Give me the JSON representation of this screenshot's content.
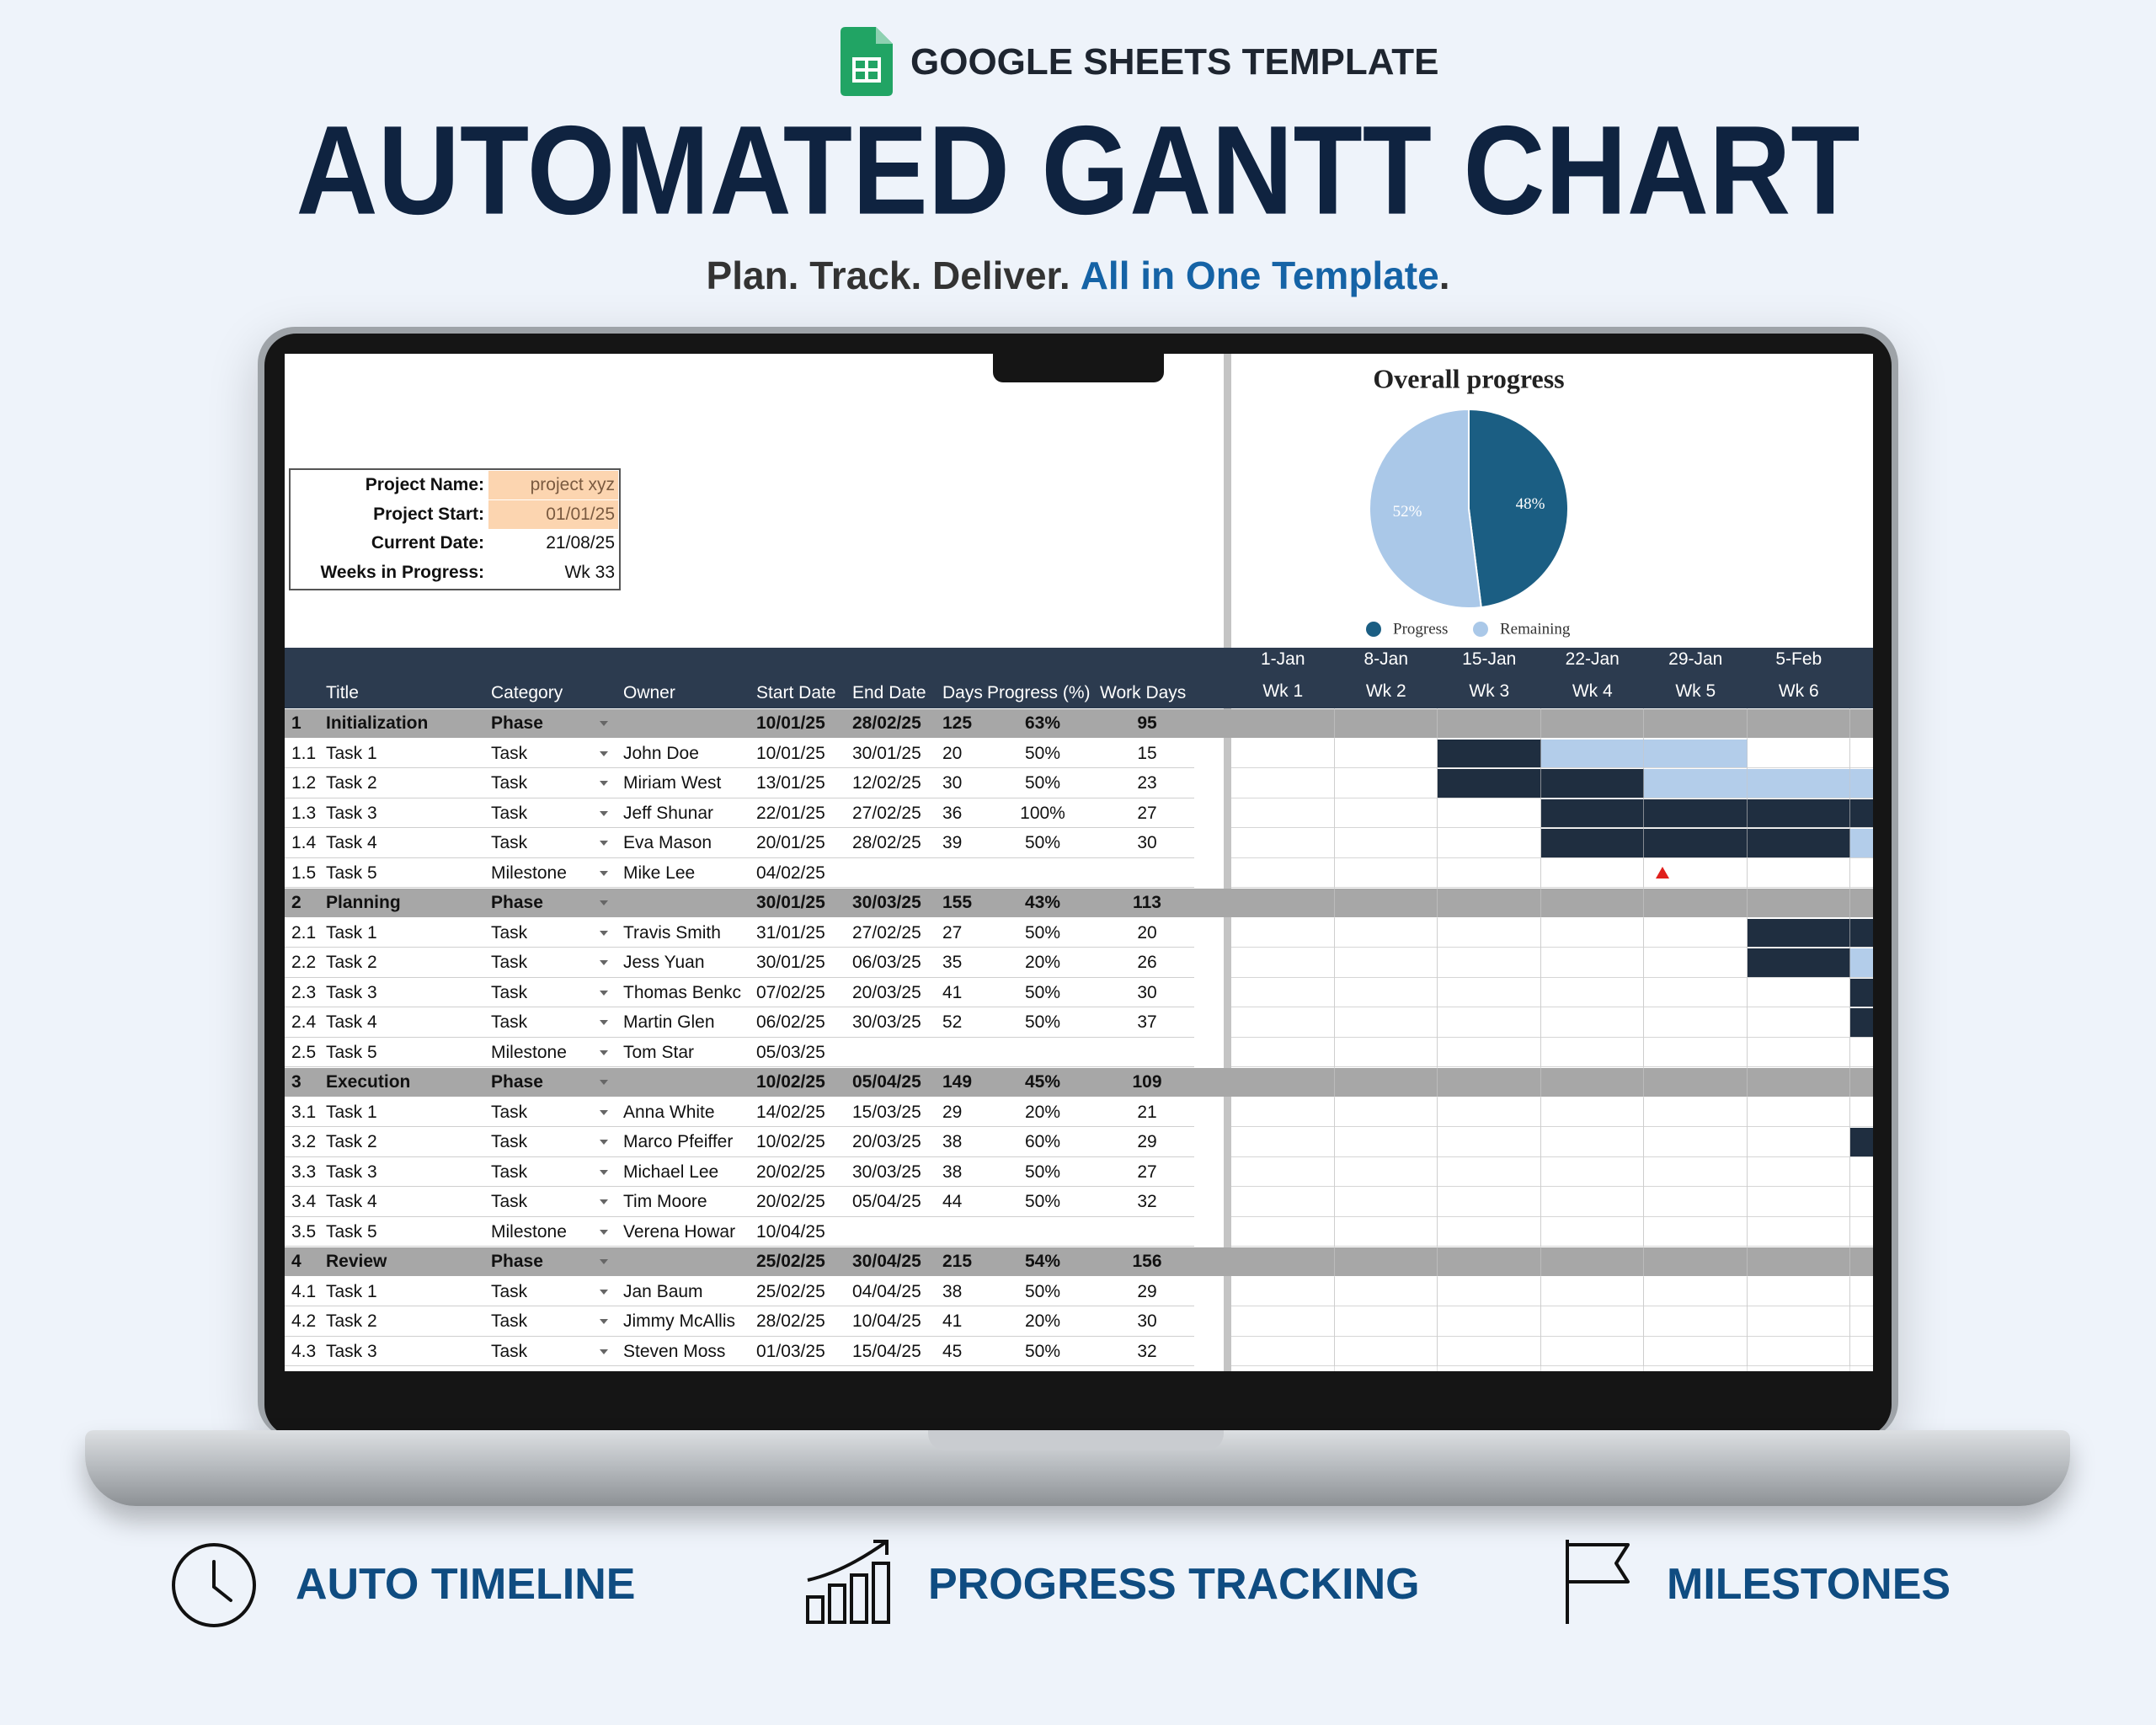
{
  "header": {
    "badge": "GOOGLE SHEETS TEMPLATE",
    "title": "AUTOMATED GANTT CHART",
    "subtitle": {
      "lead": "Plan. Track. Deliver.",
      "highlight": "All in One Template",
      "end": "."
    }
  },
  "project": {
    "name": {
      "label": "Project Name:",
      "value": "project xyz"
    },
    "start": {
      "label": "Project Start:",
      "value": "01/01/25"
    },
    "current": {
      "label": "Current Date:",
      "value": "21/08/25"
    },
    "weeks": {
      "label": "Weeks in Progress:",
      "value": "Wk 33"
    }
  },
  "chart_data": {
    "type": "pie",
    "title": "Overall progress",
    "labels": [
      "Progress",
      "Remaining"
    ],
    "values": [
      48,
      52
    ],
    "value_labels": [
      "48%",
      "52%"
    ],
    "colors": [
      "#1b5e83",
      "#aac8e8"
    ]
  },
  "table": {
    "headers": {
      "title": "Title",
      "category": "Category",
      "owner": "Owner",
      "start": "Start Date",
      "end": "End Date",
      "days": "Days",
      "progress": "Progress (%)",
      "work_days": "Work Days"
    },
    "rows": [
      {
        "id": "1",
        "title": "Initialization",
        "category": "Phase",
        "start": "10/01/25",
        "end": "28/02/25",
        "days": "125",
        "progress": "63%",
        "work_days": "95"
      },
      {
        "id": "1.1",
        "title": "Task 1",
        "category": "Task",
        "owner": "John Doe",
        "start": "10/01/25",
        "end": "30/01/25",
        "days": "20",
        "progress": "50%",
        "work_days": "15"
      },
      {
        "id": "1.2",
        "title": "Task 2",
        "category": "Task",
        "owner": "Miriam West",
        "start": "13/01/25",
        "end": "12/02/25",
        "days": "30",
        "progress": "50%",
        "work_days": "23"
      },
      {
        "id": "1.3",
        "title": "Task 3",
        "category": "Task",
        "owner": "Jeff Shunar",
        "start": "22/01/25",
        "end": "27/02/25",
        "days": "36",
        "progress": "100%",
        "work_days": "27"
      },
      {
        "id": "1.4",
        "title": "Task 4",
        "category": "Task",
        "owner": "Eva Mason",
        "start": "20/01/25",
        "end": "28/02/25",
        "days": "39",
        "progress": "50%",
        "work_days": "30"
      },
      {
        "id": "1.5",
        "title": "Task 5",
        "category": "Milestone",
        "owner": "Mike Lee",
        "start": "04/02/25"
      },
      {
        "id": "2",
        "title": "Planning",
        "category": "Phase",
        "start": "30/01/25",
        "end": "30/03/25",
        "days": "155",
        "progress": "43%",
        "work_days": "113"
      },
      {
        "id": "2.1",
        "title": "Task 1",
        "category": "Task",
        "owner": "Travis Smith",
        "start": "31/01/25",
        "end": "27/02/25",
        "days": "27",
        "progress": "50%",
        "work_days": "20"
      },
      {
        "id": "2.2",
        "title": "Task 2",
        "category": "Task",
        "owner": "Jess Yuan",
        "start": "30/01/25",
        "end": "06/03/25",
        "days": "35",
        "progress": "20%",
        "work_days": "26"
      },
      {
        "id": "2.3",
        "title": "Task 3",
        "category": "Task",
        "owner": "Thomas Benkc",
        "start": "07/02/25",
        "end": "20/03/25",
        "days": "41",
        "progress": "50%",
        "work_days": "30"
      },
      {
        "id": "2.4",
        "title": "Task 4",
        "category": "Task",
        "owner": "Martin Glen",
        "start": "06/02/25",
        "end": "30/03/25",
        "days": "52",
        "progress": "50%",
        "work_days": "37"
      },
      {
        "id": "2.5",
        "title": "Task 5",
        "category": "Milestone",
        "owner": "Tom Star",
        "start": "05/03/25"
      },
      {
        "id": "3",
        "title": "Execution",
        "category": "Phase",
        "start": "10/02/25",
        "end": "05/04/25",
        "days": "149",
        "progress": "45%",
        "work_days": "109"
      },
      {
        "id": "3.1",
        "title": "Task 1",
        "category": "Task",
        "owner": "Anna White",
        "start": "14/02/25",
        "end": "15/03/25",
        "days": "29",
        "progress": "20%",
        "work_days": "21"
      },
      {
        "id": "3.2",
        "title": "Task 2",
        "category": "Task",
        "owner": "Marco Pfeiffer",
        "start": "10/02/25",
        "end": "20/03/25",
        "days": "38",
        "progress": "60%",
        "work_days": "29"
      },
      {
        "id": "3.3",
        "title": "Task 3",
        "category": "Task",
        "owner": "Michael Lee",
        "start": "20/02/25",
        "end": "30/03/25",
        "days": "38",
        "progress": "50%",
        "work_days": "27"
      },
      {
        "id": "3.4",
        "title": "Task 4",
        "category": "Task",
        "owner": "Tim Moore",
        "start": "20/02/25",
        "end": "05/04/25",
        "days": "44",
        "progress": "50%",
        "work_days": "32"
      },
      {
        "id": "3.5",
        "title": "Task 5",
        "category": "Milestone",
        "owner": "Verena Howar",
        "start": "10/04/25"
      },
      {
        "id": "4",
        "title": "Review",
        "category": "Phase",
        "start": "25/02/25",
        "end": "30/04/25",
        "days": "215",
        "progress": "54%",
        "work_days": "156"
      },
      {
        "id": "4.1",
        "title": "Task 1",
        "category": "Task",
        "owner": "Jan Baum",
        "start": "25/02/25",
        "end": "04/04/25",
        "days": "38",
        "progress": "50%",
        "work_days": "29"
      },
      {
        "id": "4.2",
        "title": "Task 2",
        "category": "Task",
        "owner": "Jimmy McAllis",
        "start": "28/02/25",
        "end": "10/04/25",
        "days": "41",
        "progress": "20%",
        "work_days": "30"
      },
      {
        "id": "4.3",
        "title": "Task 3",
        "category": "Task",
        "owner": "Steven Moss",
        "start": "01/03/25",
        "end": "15/04/25",
        "days": "45",
        "progress": "50%",
        "work_days": "32"
      }
    ]
  },
  "gantt": {
    "weeks": [
      {
        "date": "1-Jan",
        "week": "Wk 1"
      },
      {
        "date": "8-Jan",
        "week": "Wk 2"
      },
      {
        "date": "15-Jan",
        "week": "Wk 3"
      },
      {
        "date": "22-Jan",
        "week": "Wk 4"
      },
      {
        "date": "29-Jan",
        "week": "Wk 5"
      },
      {
        "date": "5-Feb",
        "week": "Wk 6"
      }
    ]
  },
  "features": [
    {
      "label": "AUTO TIMELINE"
    },
    {
      "label": "PROGRESS TRACKING"
    },
    {
      "label": "MILESTONES"
    }
  ]
}
